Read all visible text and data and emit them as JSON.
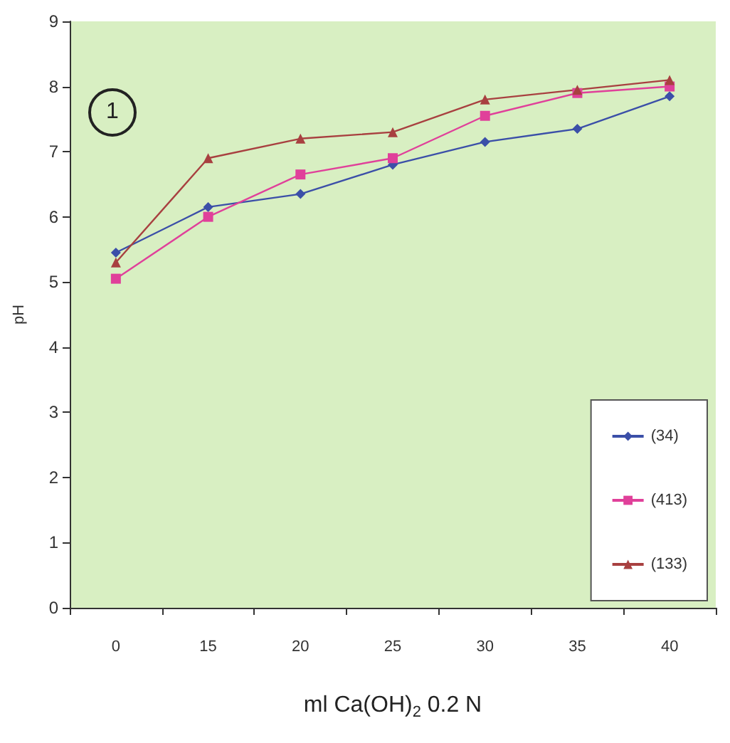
{
  "chart_data": {
    "type": "line",
    "xlabel": "ml Ca(OH)$_{2}$ 0.2 N",
    "ylabel": "pH",
    "categories": [
      "0",
      "15",
      "20",
      "25",
      "30",
      "35",
      "40"
    ],
    "series": [
      {
        "name": "(34)",
        "color": "#3b4fa8",
        "marker": "diamond",
        "values": [
          5.45,
          6.15,
          6.35,
          6.8,
          7.15,
          7.35,
          7.85
        ]
      },
      {
        "name": "(413)",
        "color": "#e0409a",
        "marker": "square",
        "values": [
          5.05,
          6.0,
          6.65,
          6.9,
          7.55,
          7.9,
          8.0
        ]
      },
      {
        "name": "(133)",
        "color": "#a84040",
        "marker": "triangle",
        "values": [
          5.3,
          6.9,
          7.2,
          7.3,
          7.8,
          7.95,
          8.1
        ]
      }
    ],
    "ylim": [
      0,
      9
    ],
    "yticks": [
      0,
      1,
      2,
      3,
      4,
      5,
      6,
      7,
      8,
      9
    ],
    "grid": false,
    "legend": "bottom right",
    "annotations": [
      "1"
    ]
  }
}
